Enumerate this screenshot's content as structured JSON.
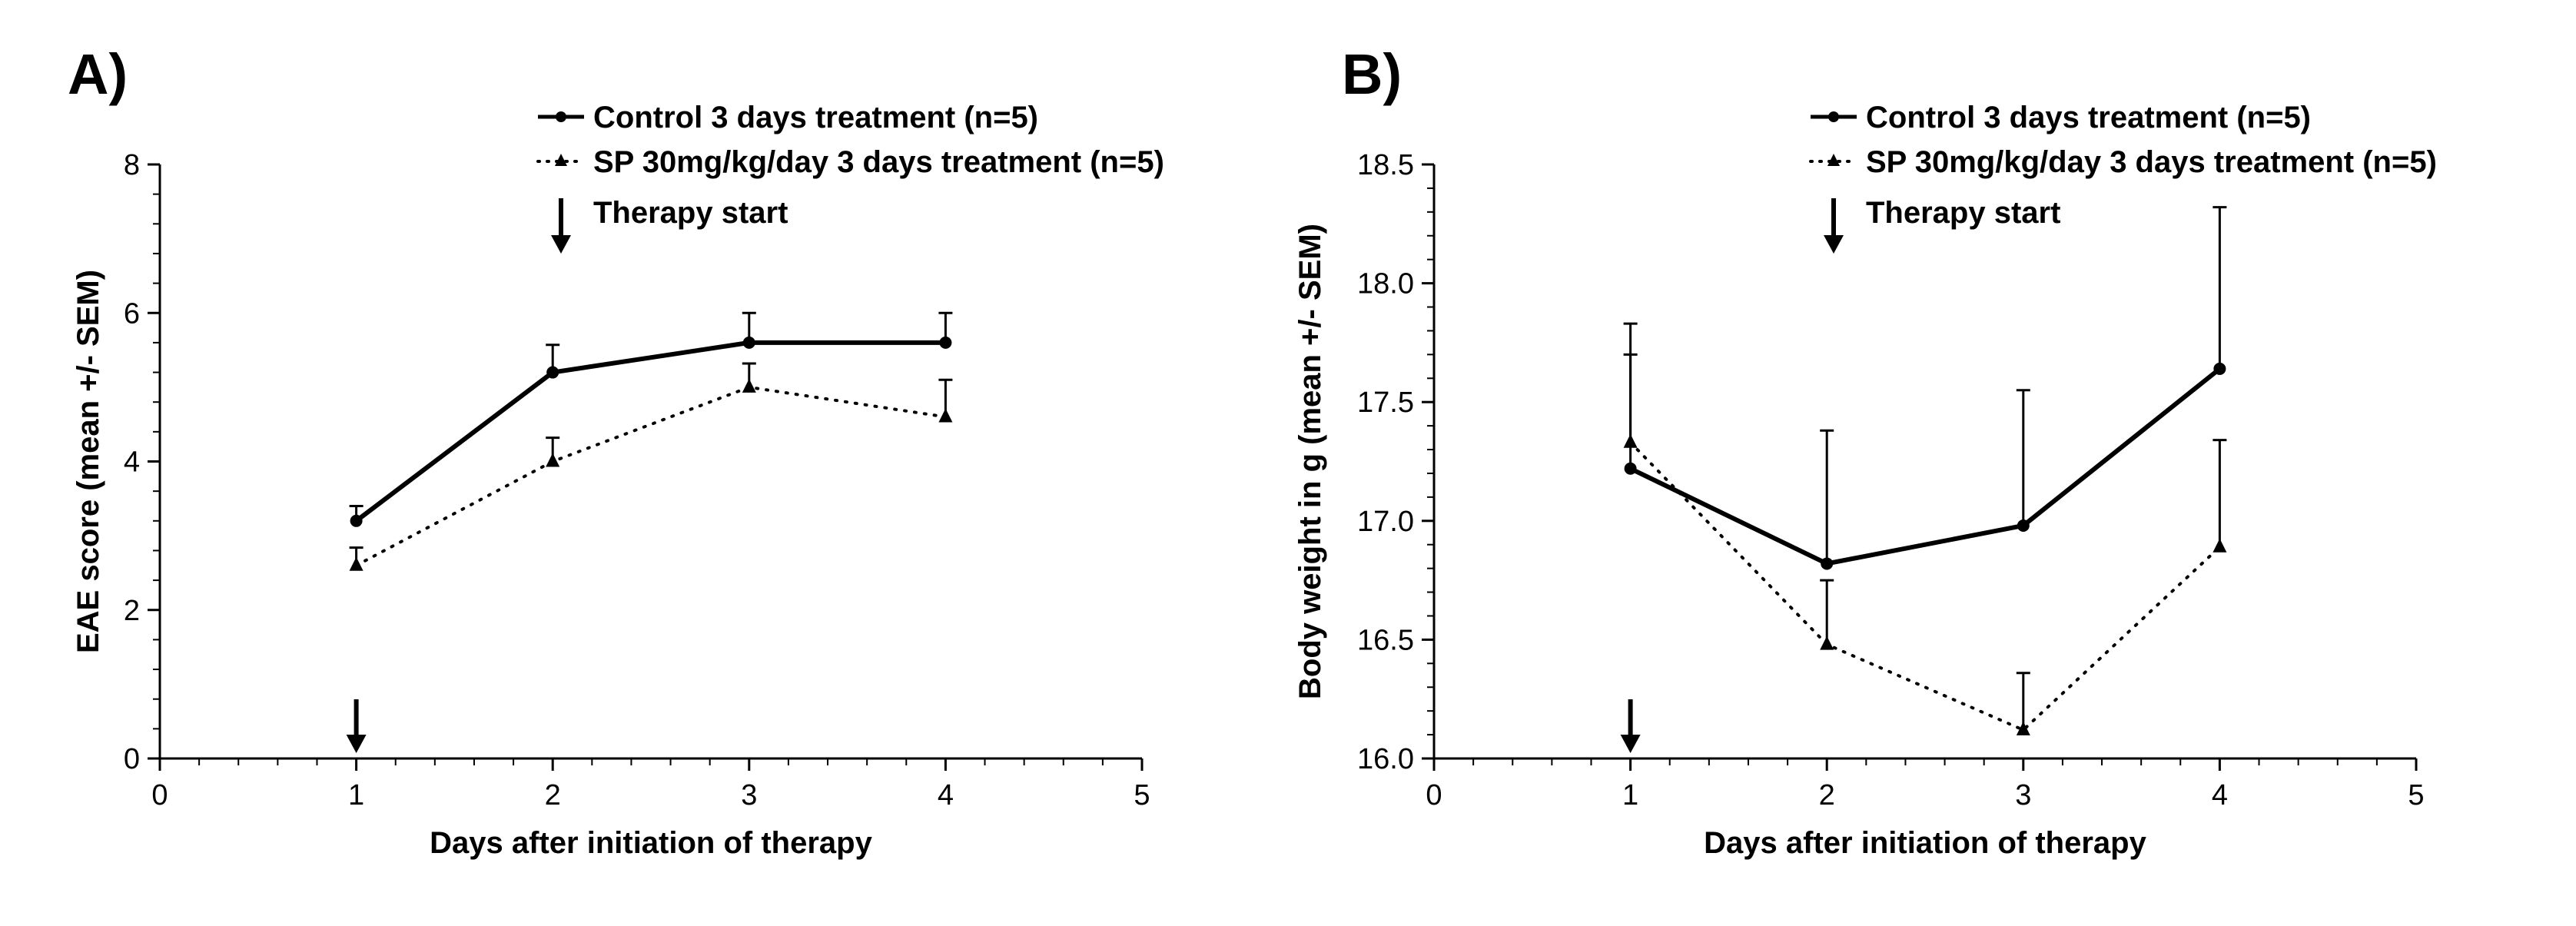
{
  "chart_data": [
    {
      "type": "line",
      "panel_label": "A)",
      "xlabel": "Days after initiation of therapy",
      "ylabel": "EAE score (mean +/- SEM)",
      "xlim": [
        0,
        5
      ],
      "ylim": [
        0,
        8
      ],
      "xticks": [
        0,
        1,
        2,
        3,
        4,
        5
      ],
      "yticks": [
        0,
        2,
        4,
        6,
        8
      ],
      "grid": false,
      "legend_position": "top-right",
      "series": [
        {
          "name": "Control 3 days treatment (n=5)",
          "style": "solid",
          "marker": "circle",
          "x": [
            1,
            2,
            3,
            4
          ],
          "values": [
            3.2,
            5.2,
            5.6,
            5.6
          ],
          "sem": [
            0.2,
            0.37,
            0.4,
            0.4
          ]
        },
        {
          "name": "SP 30mg/kg/day 3 days treatment (n=5)",
          "style": "dotted",
          "marker": "triangle",
          "x": [
            1,
            2,
            3,
            4
          ],
          "values": [
            2.6,
            4.0,
            5.0,
            4.6
          ],
          "sem": [
            0.24,
            0.32,
            0.32,
            0.5
          ]
        }
      ],
      "annotations": [
        {
          "text": "Therapy start"
        },
        {
          "text": "",
          "x": 1
        }
      ]
    },
    {
      "type": "line",
      "panel_label": "B)",
      "xlabel": "Days after initiation of therapy",
      "ylabel": "Body weight in g (mean +/- SEM)",
      "xlim": [
        0,
        5
      ],
      "ylim": [
        16.0,
        18.5
      ],
      "xticks": [
        0,
        1,
        2,
        3,
        4,
        5
      ],
      "yticks": [
        16.0,
        16.5,
        17.0,
        17.5,
        18.0,
        18.5
      ],
      "grid": false,
      "legend_position": "top-right",
      "series": [
        {
          "name": "Control 3 days treatment (n=5)",
          "style": "solid",
          "marker": "circle",
          "x": [
            1,
            2,
            3,
            4
          ],
          "values": [
            17.22,
            16.82,
            16.98,
            17.64
          ],
          "sem": [
            0.61,
            0.56,
            0.57,
            0.68
          ]
        },
        {
          "name": "SP 30mg/kg/day 3 days treatment (n=5)",
          "style": "dotted",
          "marker": "triangle",
          "x": [
            1,
            2,
            3,
            4
          ],
          "values": [
            17.33,
            16.48,
            16.12,
            16.89
          ],
          "sem": [
            0.37,
            0.27,
            0.24,
            0.45
          ]
        }
      ],
      "annotations": [
        {
          "text": "Therapy start"
        },
        {
          "text": "",
          "x": 1
        }
      ]
    }
  ]
}
